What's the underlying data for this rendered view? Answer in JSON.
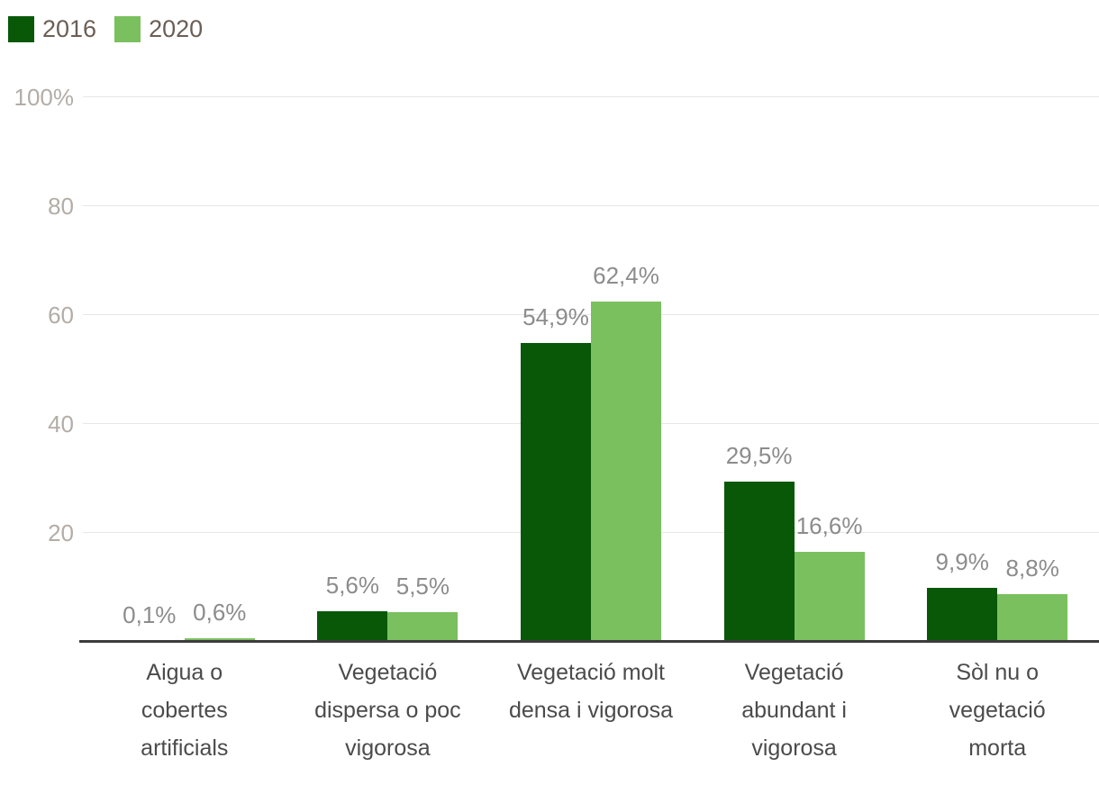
{
  "legend": {
    "items": [
      {
        "label": "2016",
        "color": "#085808"
      },
      {
        "label": "2020",
        "color": "#7ac05e"
      }
    ]
  },
  "chart_data": {
    "type": "bar",
    "title": "",
    "xlabel": "",
    "ylabel": "",
    "legend_position": "top-left",
    "grid": true,
    "ylim": [
      0,
      100
    ],
    "categories": [
      "Aigua o cobertes artificials",
      "Vegetació dispersa o poc vigorosa",
      "Vegetació molt densa i vigorosa",
      "Vegetació abundant i vigorosa",
      "Sòl nu o vegetació morta"
    ],
    "category_lines": [
      [
        "Aigua o",
        "cobertes",
        "artificials"
      ],
      [
        "Vegetació",
        "dispersa o poc",
        "vigorosa"
      ],
      [
        "Vegetació molt",
        "densa i vigorosa"
      ],
      [
        "Vegetació",
        "abundant i",
        "vigorosa"
      ],
      [
        "Sòl nu o",
        "vegetació",
        "morta"
      ]
    ],
    "series": [
      {
        "name": "2016",
        "color": "#085808",
        "values": [
          0.1,
          5.6,
          54.9,
          29.5,
          9.9
        ],
        "labels": [
          "0,1%",
          "5,6%",
          "54,9%",
          "29,5%",
          "9,9%"
        ]
      },
      {
        "name": "2020",
        "color": "#7ac05e",
        "values": [
          0.6,
          5.5,
          62.4,
          16.6,
          8.8
        ],
        "labels": [
          "0,6%",
          "5,5%",
          "62,4%",
          "16,6%",
          "8,8%"
        ]
      }
    ],
    "y_axis": {
      "ticks": [
        {
          "value": 20,
          "label": "20"
        },
        {
          "value": 40,
          "label": "40"
        },
        {
          "value": 60,
          "label": "60"
        },
        {
          "value": 80,
          "label": "80"
        },
        {
          "value": 100,
          "label": "100%"
        }
      ]
    }
  },
  "colors": {
    "grid": "#e7e7e7",
    "axis": "#3c3c3c",
    "y_tick_text": "#b3ada7",
    "value_label_text": "#8c8c8c",
    "category_text": "#4b4b4b",
    "legend_text": "#6b5e55"
  }
}
